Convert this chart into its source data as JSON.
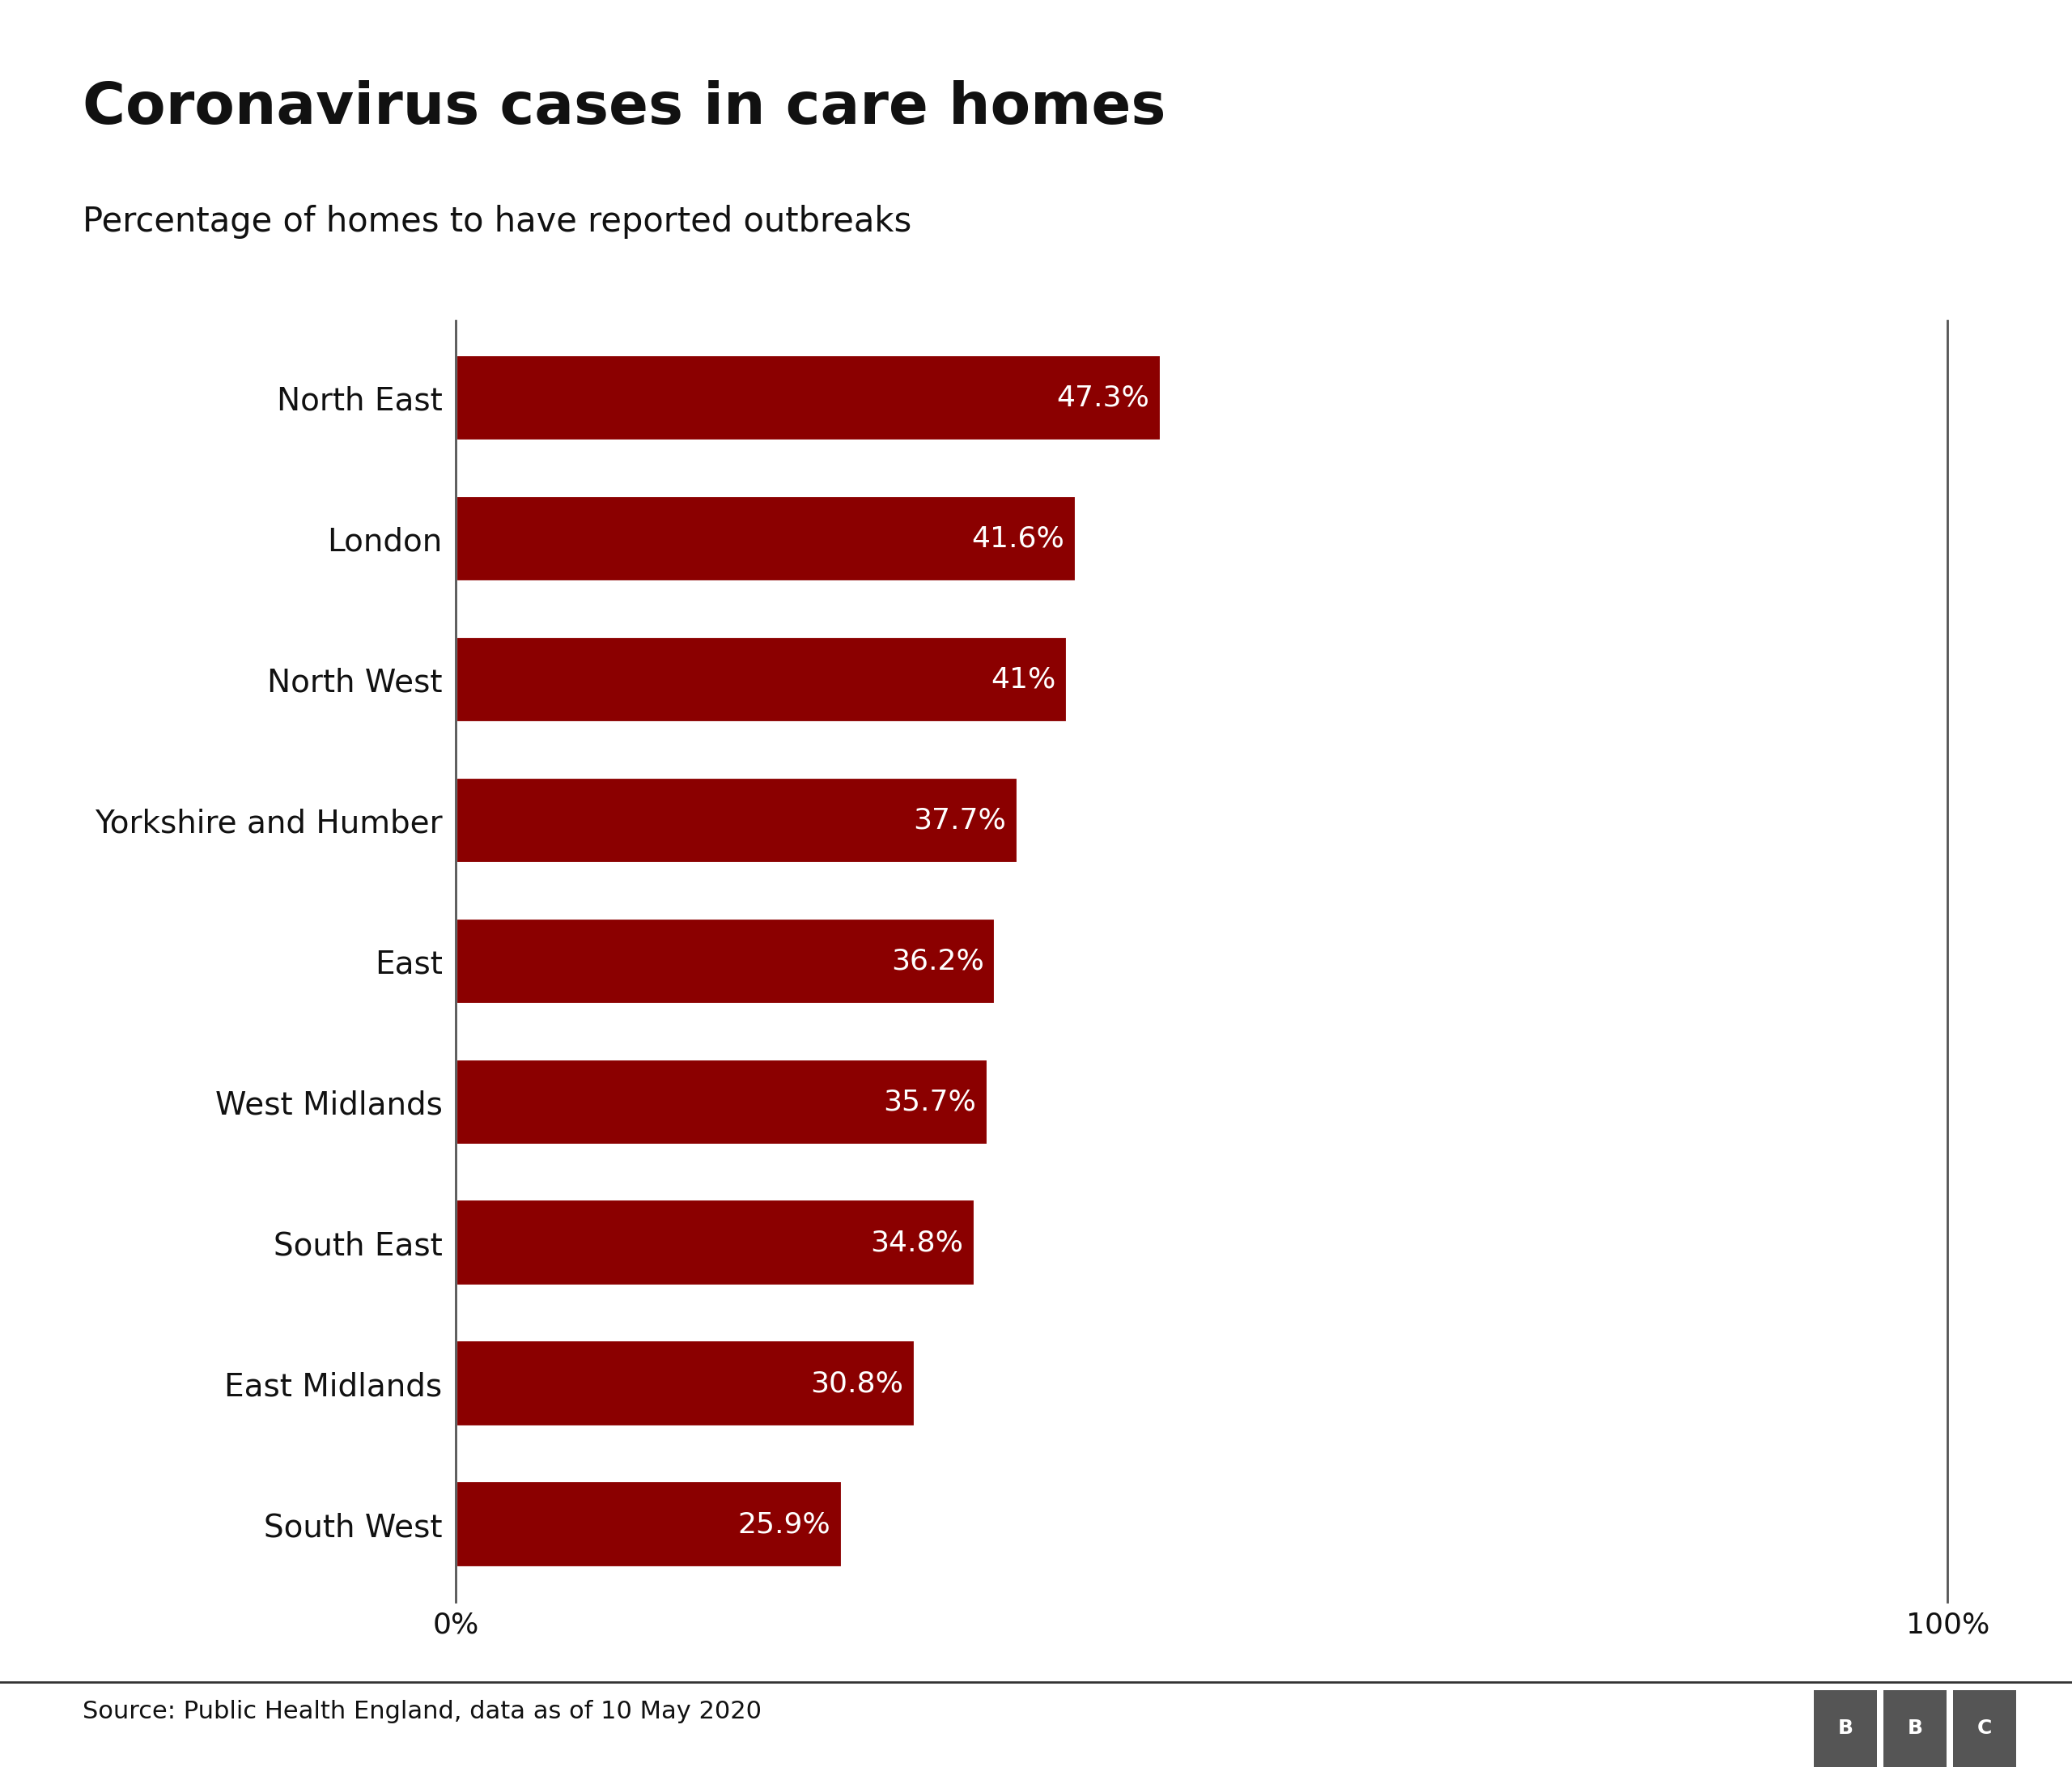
{
  "title": "Coronavirus cases in care homes",
  "subtitle": "Percentage of homes to have reported outbreaks",
  "source": "Source: Public Health England, data as of 10 May 2020",
  "categories": [
    "North East",
    "London",
    "North West",
    "Yorkshire and Humber",
    "East",
    "West Midlands",
    "South East",
    "East Midlands",
    "South West"
  ],
  "values": [
    47.3,
    41.6,
    41.0,
    37.7,
    36.2,
    35.7,
    34.8,
    30.8,
    25.9
  ],
  "labels": [
    "47.3%",
    "41.6%",
    "41%",
    "37.7%",
    "36.2%",
    "35.7%",
    "34.8%",
    "30.8%",
    "25.9%"
  ],
  "bar_color": "#8B0000",
  "text_color": "#ffffff",
  "background_color": "#ffffff",
  "title_color": "#111111",
  "subtitle_color": "#111111",
  "source_color": "#111111",
  "axis_line_color": "#555555",
  "xlim": [
    0,
    100
  ],
  "x_tick_labels": [
    "0%",
    "100%"
  ],
  "x_tick_positions": [
    0,
    100
  ],
  "title_fontsize": 52,
  "subtitle_fontsize": 30,
  "label_fontsize": 26,
  "category_fontsize": 28,
  "source_fontsize": 22,
  "bar_height": 0.62
}
